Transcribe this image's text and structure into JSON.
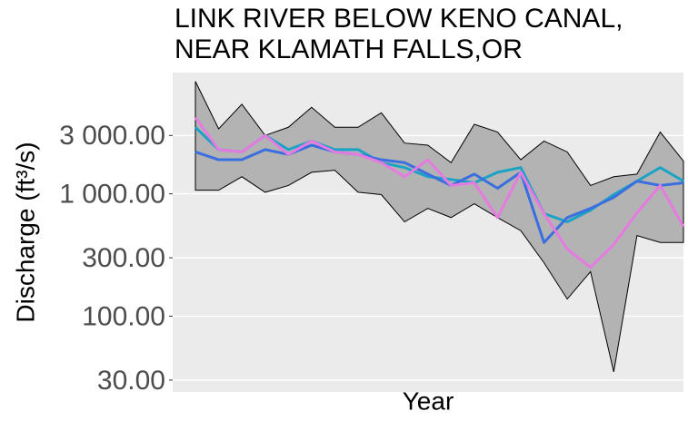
{
  "chart_data": {
    "type": "line",
    "title": [
      "LINK RIVER BELOW KENO CANAL,",
      "NEAR KLAMATH FALLS,OR"
    ],
    "xlabel": "Year",
    "ylabel": "Discharge (ft³/s)",
    "log_y": true,
    "grid": true,
    "ylim": [
      24,
      9800
    ],
    "yticks": [
      {
        "value": 30,
        "label": "30.00"
      },
      {
        "value": 100,
        "label": "100.00"
      },
      {
        "value": 300,
        "label": "300.00"
      },
      {
        "value": 1000,
        "label": "1 000.00"
      },
      {
        "value": 3000,
        "label": "3 000.00"
      }
    ],
    "categories": [
      null,
      null,
      null,
      null,
      null,
      null,
      null,
      null,
      null,
      null,
      null,
      null,
      null,
      null,
      null,
      null,
      null,
      null,
      null,
      null,
      null,
      null
    ],
    "band": {
      "color": "#b3b3b3",
      "upper": [
        8300,
        3400,
        5400,
        3000,
        3500,
        5100,
        3500,
        3500,
        4600,
        2600,
        2500,
        1800,
        3700,
        3200,
        1900,
        2700,
        2200,
        1170,
        1380,
        1450,
        3200,
        1850
      ],
      "lower": [
        1070,
        1070,
        1380,
        1030,
        1170,
        1500,
        1560,
        1030,
        985,
        590,
        760,
        640,
        830,
        640,
        500,
        273,
        138,
        231,
        35,
        456,
        400,
        400
      ]
    },
    "series": [
      {
        "color": "#1ba3c6",
        "values": [
          3500,
          2300,
          2200,
          3000,
          2300,
          2700,
          2300,
          2300,
          1800,
          1640,
          1380,
          1310,
          1230,
          1500,
          1640,
          690,
          590,
          735,
          985,
          1270,
          1640,
          1270
        ]
      },
      {
        "color": "#3b6fe0",
        "values": [
          2200,
          1900,
          1900,
          2300,
          2100,
          2500,
          2200,
          2100,
          1900,
          1800,
          1450,
          1170,
          1450,
          1110,
          1500,
          400,
          640,
          760,
          935,
          1270,
          1170,
          1230
        ]
      },
      {
        "color": "#e57be0",
        "values": [
          4200,
          2300,
          2200,
          3000,
          2100,
          2700,
          2200,
          2100,
          1800,
          1380,
          1900,
          1170,
          1230,
          640,
          1500,
          690,
          353,
          251,
          385,
          700,
          1170,
          540
        ]
      }
    ]
  }
}
